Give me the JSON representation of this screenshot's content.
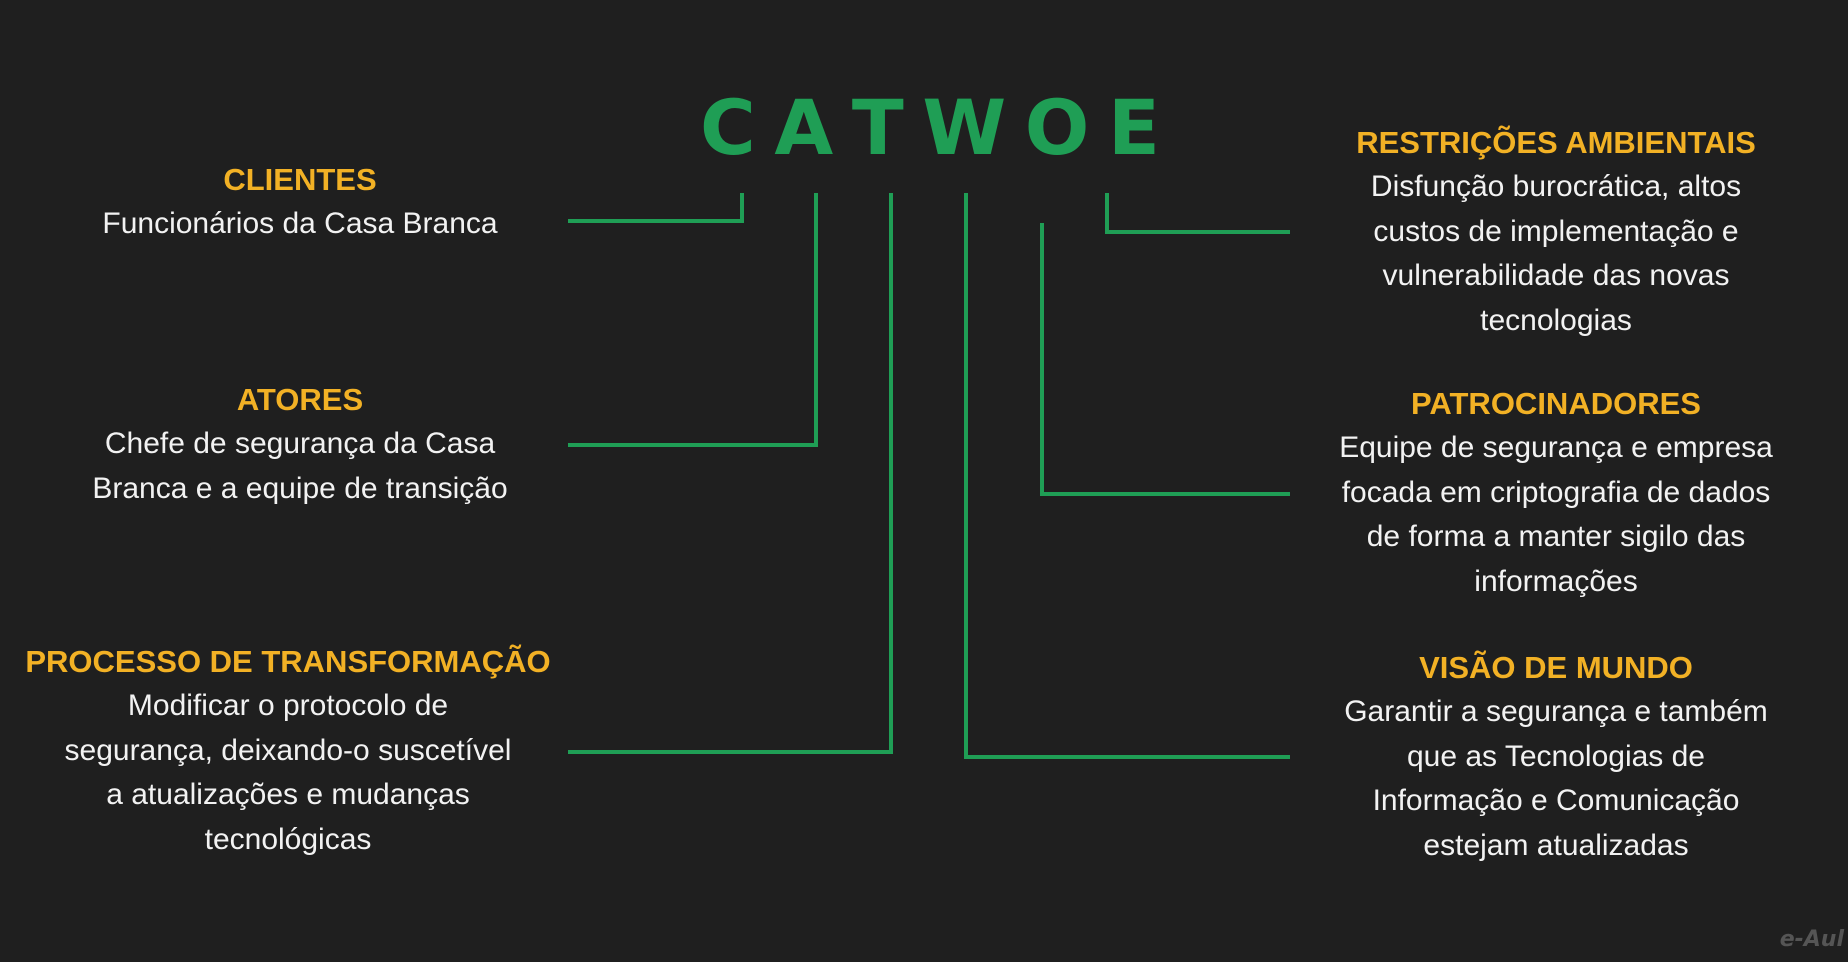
{
  "title_letters": [
    "C",
    "A",
    "T",
    "W",
    "O",
    "E"
  ],
  "colors": {
    "background": "#1f1f1f",
    "title": "#1f9e55",
    "connector": "#1f9e55",
    "heading": "#f2b125",
    "text": "#f2f2f2"
  },
  "clientes": {
    "heading": "CLIENTES",
    "lines": [
      "Funcionários da Casa Branca"
    ]
  },
  "atores": {
    "heading": "ATORES",
    "lines": [
      "Chefe de segurança da Casa",
      "Branca e a equipe de transição"
    ]
  },
  "transformacao": {
    "heading": "PROCESSO DE TRANSFORMAÇÃO",
    "lines": [
      "Modificar o protocolo de",
      "segurança, deixando-o suscetível",
      "a atualizações e mudanças",
      "tecnológicas"
    ]
  },
  "restricoes": {
    "heading": "RESTRIÇÕES AMBIENTAIS",
    "lines": [
      "Disfunção burocrática, altos",
      "custos de implementação e",
      "vulnerabilidade das novas",
      "tecnologias"
    ]
  },
  "patrocinadores": {
    "heading": "PATROCINADORES",
    "lines": [
      "Equipe de segurança e empresa",
      "focada em criptografia de dados",
      "de forma a manter sigilo das",
      "informações"
    ]
  },
  "visao": {
    "heading": "VISÃO DE MUNDO",
    "lines": [
      "Garantir a segurança e também",
      "que as Tecnologias de",
      "Informação e Comunicação",
      "estejam atualizadas"
    ]
  },
  "watermark": "e-Aul"
}
